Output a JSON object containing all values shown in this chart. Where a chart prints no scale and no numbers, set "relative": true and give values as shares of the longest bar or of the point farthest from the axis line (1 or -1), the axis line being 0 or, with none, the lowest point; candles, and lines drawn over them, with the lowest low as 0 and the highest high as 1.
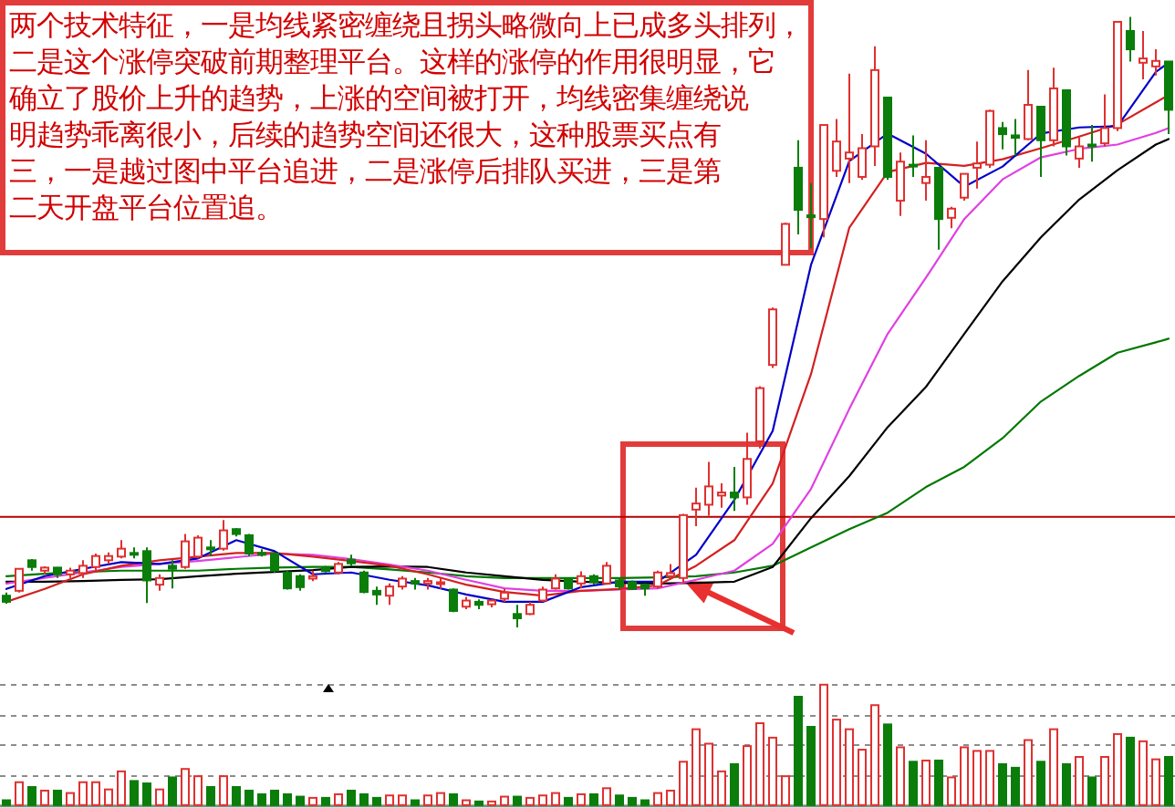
{
  "chart_data": [
    {
      "type": "candlestick",
      "relative": true,
      "categories": [
        null,
        null,
        null,
        null,
        null,
        null,
        null,
        null,
        null,
        null,
        null,
        null,
        null,
        null,
        null,
        null,
        null,
        null,
        null,
        null,
        null,
        null,
        null,
        null,
        null,
        null,
        null,
        null,
        null,
        null,
        null,
        null,
        null,
        null,
        null,
        null,
        null,
        null,
        null,
        null,
        null,
        null,
        null,
        null,
        null,
        null,
        null,
        null,
        null,
        null,
        null,
        null,
        null,
        null,
        null,
        null,
        null,
        null,
        null,
        null,
        null,
        null,
        null,
        null,
        null,
        null,
        null,
        null,
        null,
        null,
        null,
        null,
        null,
        null,
        null,
        null,
        null,
        null,
        null,
        null,
        null,
        null,
        null,
        null,
        null,
        null,
        null,
        null,
        null,
        null,
        null,
        null
      ],
      "ohlc": [
        [
          0.052,
          0.057,
          0.039,
          0.042
        ],
        [
          0.06,
          0.097,
          0.057,
          0.096
        ],
        [
          0.11,
          0.112,
          0.093,
          0.099
        ],
        [
          0.093,
          0.1,
          0.087,
          0.098
        ],
        [
          0.098,
          0.099,
          0.081,
          0.087
        ],
        [
          0.087,
          0.098,
          0.081,
          0.093
        ],
        [
          0.089,
          0.11,
          0.081,
          0.101
        ],
        [
          0.099,
          0.121,
          0.093,
          0.117
        ],
        [
          0.11,
          0.123,
          0.104,
          0.117
        ],
        [
          0.116,
          0.143,
          0.113,
          0.129
        ],
        [
          0.122,
          0.131,
          0.113,
          0.121
        ],
        [
          0.125,
          0.131,
          0.04,
          0.077
        ],
        [
          0.07,
          0.087,
          0.06,
          0.081
        ],
        [
          0.101,
          0.11,
          0.064,
          0.096
        ],
        [
          0.099,
          0.153,
          0.096,
          0.141
        ],
        [
          0.116,
          0.151,
          0.113,
          0.147
        ],
        [
          0.131,
          0.143,
          0.117,
          0.128
        ],
        [
          0.129,
          0.176,
          0.126,
          0.159
        ],
        [
          0.161,
          0.163,
          0.149,
          0.153
        ],
        [
          0.151,
          0.153,
          0.117,
          0.121
        ],
        [
          0.122,
          0.128,
          0.116,
          0.119
        ],
        [
          0.121,
          0.123,
          0.09,
          0.093
        ],
        [
          0.09,
          0.093,
          0.062,
          0.064
        ],
        [
          0.084,
          0.087,
          0.06,
          0.066
        ],
        [
          0.08,
          0.093,
          0.076,
          0.084
        ],
        [
          0.098,
          0.101,
          0.09,
          0.092
        ],
        [
          0.09,
          0.107,
          0.087,
          0.104
        ],
        [
          0.111,
          0.119,
          0.101,
          0.105
        ],
        [
          0.09,
          0.093,
          0.056,
          0.058
        ],
        [
          0.06,
          0.067,
          0.037,
          0.054
        ],
        [
          0.052,
          0.072,
          0.037,
          0.067
        ],
        [
          0.067,
          0.084,
          0.062,
          0.08
        ],
        [
          0.076,
          0.081,
          0.062,
          0.072
        ],
        [
          0.072,
          0.081,
          0.062,
          0.076
        ],
        [
          0.071,
          0.081,
          0.063,
          0.074
        ],
        [
          0.062,
          0.064,
          0.025,
          0.027
        ],
        [
          0.034,
          0.05,
          0.03,
          0.044
        ],
        [
          0.042,
          0.046,
          0.03,
          0.037
        ],
        [
          0.038,
          0.046,
          0.033,
          0.044
        ],
        [
          0.047,
          0.064,
          0.042,
          0.057
        ],
        [
          0.022,
          0.037,
          0,
          0.015
        ],
        [
          0.022,
          0.042,
          0.02,
          0.037
        ],
        [
          0.044,
          0.067,
          0.042,
          0.062
        ],
        [
          0.064,
          0.087,
          0.062,
          0.08
        ],
        [
          0.079,
          0.081,
          0.062,
          0.064
        ],
        [
          0.072,
          0.092,
          0.064,
          0.084
        ],
        [
          0.084,
          0.087,
          0.07,
          0.074
        ],
        [
          0.072,
          0.107,
          0.07,
          0.101
        ],
        [
          0.077,
          0.081,
          0.062,
          0.067
        ],
        [
          0.074,
          0.077,
          0.062,
          0.063
        ],
        [
          0.07,
          0.072,
          0.052,
          0.064
        ],
        [
          0.067,
          0.093,
          0.064,
          0.09
        ],
        [
          0.084,
          0.104,
          0.081,
          0.089
        ],
        [
          0.081,
          0.186,
          0.072,
          0.184
        ],
        [
          0.193,
          0.229,
          0.166,
          0.203
        ],
        [
          0.201,
          0.271,
          0.183,
          0.231
        ],
        [
          0.216,
          0.236,
          0.196,
          0.221
        ],
        [
          0.221,
          0.263,
          0.191,
          0.213
        ],
        [
          0.213,
          0.319,
          0.201,
          0.276
        ],
        [
          0.305,
          0.395,
          0.293,
          0.392
        ],
        [
          0.43,
          0.524,
          0.425,
          0.521
        ],
        [
          0.594,
          0.663,
          0.594,
          0.661
        ],
        [
          0.753,
          0.798,
          0.644,
          0.684
        ],
        [
          0.675,
          0.728,
          0.621,
          0.673
        ],
        [
          0.669,
          0.824,
          0.639,
          0.823
        ],
        [
          0.748,
          0.833,
          0.738,
          0.796
        ],
        [
          0.768,
          0.907,
          0.728,
          0.778
        ],
        [
          0.738,
          0.808,
          0.733,
          0.785
        ],
        [
          0.788,
          0.952,
          0.756,
          0.913
        ],
        [
          0.868,
          0.868,
          0.733,
          0.738
        ],
        [
          0.699,
          0.778,
          0.674,
          0.763
        ],
        [
          0.758,
          0.806,
          0.738,
          0.755
        ],
        [
          0.728,
          0.798,
          0.699,
          0.738
        ],
        [
          0.753,
          0.753,
          0.619,
          0.669
        ],
        [
          0.671,
          0.689,
          0.654,
          0.686
        ],
        [
          0.704,
          0.743,
          0.699,
          0.743
        ],
        [
          0.753,
          0.796,
          0.719,
          0.76
        ],
        [
          0.758,
          0.848,
          0.753,
          0.846
        ],
        [
          0.818,
          0.828,
          0.783,
          0.808
        ],
        [
          0.806,
          0.833,
          0.773,
          0.802
        ],
        [
          0.8,
          0.913,
          0.798,
          0.856
        ],
        [
          0.853,
          0.853,
          0.738,
          0.798
        ],
        [
          0.798,
          0.917,
          0.788,
          0.883
        ],
        [
          0.88,
          0.88,
          0.773,
          0.788
        ],
        [
          0.768,
          0.803,
          0.753,
          0.788
        ],
        [
          0.791,
          0.823,
          0.763,
          0.788
        ],
        [
          0.793,
          0.873,
          0.788,
          0.818
        ],
        [
          0.818,
          0.992,
          0.813,
          0.992
        ],
        [
          0.977,
          1,
          0.927,
          0.947
        ],
        [
          0.925,
          0.977,
          0.898,
          0.932
        ],
        [
          0.919,
          0.947,
          0.904,
          0.928
        ],
        [
          0.927,
          0.927,
          0.808,
          0.848
        ]
      ],
      "colors": [
        "#0a7d0a",
        "#e03030",
        "#0a7d0a",
        "#e03030",
        "#0a7d0a",
        "#e03030",
        "#e03030",
        "#e03030",
        "#e03030",
        "#e03030",
        "#0a7d0a",
        "#0a7d0a",
        "#e03030",
        "#0a7d0a",
        "#e03030",
        "#e03030",
        "#0a7d0a",
        "#e03030",
        "#0a7d0a",
        "#0a7d0a",
        "#0a7d0a",
        "#0a7d0a",
        "#0a7d0a",
        "#0a7d0a",
        "#e03030",
        "#0a7d0a",
        "#e03030",
        "#0a7d0a",
        "#0a7d0a",
        "#0a7d0a",
        "#e03030",
        "#e03030",
        "#0a7d0a",
        "#e03030",
        "#e03030",
        "#0a7d0a",
        "#e03030",
        "#0a7d0a",
        "#e03030",
        "#e03030",
        "#0a7d0a",
        "#e03030",
        "#e03030",
        "#e03030",
        "#0a7d0a",
        "#e03030",
        "#0a7d0a",
        "#e03030",
        "#0a7d0a",
        "#0a7d0a",
        "#0a7d0a",
        "#e03030",
        "#e03030",
        "#e03030",
        "#e03030",
        "#e03030",
        "#e03030",
        "#0a7d0a",
        "#e03030",
        "#e03030",
        "#e03030",
        "#e03030",
        "#0a7d0a",
        "#0a7d0a",
        "#e03030",
        "#e03030",
        "#e03030",
        "#e03030",
        "#e03030",
        "#0a7d0a",
        "#e03030",
        "#0a7d0a",
        "#e03030",
        "#0a7d0a",
        "#e03030",
        "#e03030",
        "#e03030",
        "#e03030",
        "#0a7d0a",
        "#0a7d0a",
        "#e03030",
        "#0a7d0a",
        "#e03030",
        "#0a7d0a",
        "#e03030",
        "#0a7d0a",
        "#e03030",
        "#e03030",
        "#0a7d0a",
        "#e03030",
        "#e03030",
        "#0a7d0a"
      ],
      "series": [
        {
          "type": "line",
          "color": "#0000c8",
          "values": [
            0.063,
            null,
            null,
            0.084,
            null,
            null,
            0.096,
            null,
            null,
            0.107,
            null,
            null,
            0.104,
            null,
            null,
            0.113,
            null,
            null,
            0.143,
            null,
            null,
            0.125,
            null,
            null,
            0.087,
            null,
            null,
            0.09,
            null,
            null,
            0.078,
            null,
            null,
            0.069,
            null,
            null,
            0.054,
            null,
            null,
            0.042,
            null,
            null,
            0.042,
            null,
            null,
            0.066,
            null,
            null,
            0.075,
            null,
            null,
            0.075,
            null,
            null,
            0.119,
            null,
            null,
            0.209,
            null,
            null,
            0.322,
            null,
            null,
            0.594,
            null,
            null,
            0.764,
            null,
            null,
            0.809,
            null,
            null,
            0.776,
            null,
            null,
            0.722,
            null,
            null,
            0.755,
            null,
            null,
            0.809,
            null,
            null,
            0.819,
            null,
            null,
            0.821,
            null,
            null,
            0.91,
            0.925
          ]
        },
        {
          "type": "line",
          "color": "#d42020",
          "values": [
            0.042,
            null,
            null,
            0.063,
            null,
            null,
            0.087,
            null,
            null,
            0.101,
            null,
            null,
            0.11,
            null,
            null,
            0.116,
            null,
            null,
            0.122,
            null,
            null,
            0.122,
            null,
            null,
            0.116,
            null,
            null,
            0.109,
            null,
            null,
            0.101,
            null,
            null,
            0.087,
            null,
            null,
            0.07,
            null,
            null,
            0.058,
            null,
            null,
            0.052,
            null,
            null,
            0.06,
            null,
            null,
            0.063,
            null,
            null,
            0.069,
            null,
            null,
            0.101,
            null,
            null,
            0.143,
            null,
            null,
            0.236,
            null,
            null,
            0.415,
            null,
            null,
            0.655,
            null,
            null,
            0.746,
            null,
            null,
            0.761,
            null,
            null,
            0.756,
            null,
            null,
            0.767,
            null,
            null,
            0.785,
            null,
            null,
            0.804,
            null,
            null,
            0.824,
            null,
            null,
            0.86,
            0.872
          ]
        },
        {
          "type": "line",
          "color": "#e040e0",
          "values": [
            0.072,
            null,
            null,
            0.081,
            null,
            null,
            0.09,
            null,
            null,
            0.099,
            null,
            null,
            0.104,
            null,
            null,
            0.109,
            null,
            null,
            0.115,
            null,
            null,
            0.121,
            null,
            null,
            0.119,
            null,
            null,
            0.112,
            null,
            null,
            0.103,
            null,
            null,
            0.093,
            null,
            null,
            0.078,
            null,
            null,
            0.064,
            null,
            null,
            0.06,
            null,
            null,
            0.06,
            null,
            null,
            0.062,
            null,
            null,
            0.064,
            null,
            null,
            0.078,
            null,
            null,
            0.093,
            null,
            null,
            0.137,
            null,
            null,
            0.227,
            null,
            null,
            0.358,
            null,
            null,
            0.481,
            null,
            null,
            0.573,
            null,
            null,
            0.669,
            null,
            null,
            0.734,
            null,
            null,
            0.77,
            null,
            null,
            0.784,
            null,
            null,
            0.791,
            null,
            null,
            0.81,
            0.818
          ]
        },
        {
          "type": "line",
          "color": "#000000",
          "values": [
            0.075,
            null,
            null,
            0.075,
            null,
            null,
            0.076,
            null,
            null,
            0.078,
            null,
            null,
            0.079,
            null,
            null,
            0.084,
            null,
            null,
            0.088,
            null,
            null,
            0.091,
            null,
            null,
            0.094,
            null,
            null,
            0.099,
            null,
            null,
            0.1,
            null,
            null,
            0.099,
            null,
            null,
            0.09,
            null,
            null,
            0.084,
            null,
            null,
            0.078,
            null,
            null,
            0.075,
            null,
            null,
            0.073,
            null,
            null,
            0.072,
            null,
            null,
            0.073,
            null,
            null,
            0.075,
            null,
            null,
            0.099,
            null,
            null,
            0.179,
            null,
            null,
            0.248,
            null,
            null,
            0.328,
            null,
            null,
            0.394,
            null,
            null,
            0.481,
            null,
            null,
            0.567,
            null,
            null,
            0.639,
            null,
            null,
            0.701,
            null,
            null,
            0.749,
            null,
            null,
            0.791,
            0.8
          ]
        },
        {
          "type": "line",
          "color": "#007800",
          "values": [
            0.084,
            null,
            null,
            0.088,
            null,
            null,
            0.091,
            null,
            null,
            0.093,
            null,
            null,
            0.093,
            null,
            null,
            0.093,
            null,
            null,
            0.096,
            null,
            null,
            0.098,
            null,
            null,
            0.099,
            null,
            null,
            0.099,
            null,
            null,
            0.095,
            null,
            null,
            0.09,
            null,
            null,
            0.084,
            null,
            null,
            0.081,
            null,
            null,
            0.081,
            null,
            null,
            0.081,
            null,
            null,
            0.081,
            null,
            null,
            0.082,
            null,
            null,
            0.084,
            null,
            null,
            0.09,
            null,
            null,
            0.101,
            null,
            null,
            0.131,
            null,
            null,
            0.161,
            null,
            null,
            0.188,
            null,
            null,
            0.23,
            null,
            null,
            0.263,
            null,
            null,
            0.31,
            null,
            null,
            0.37,
            null,
            null,
            0.412,
            null,
            null,
            0.45,
            null,
            null,
            0.467,
            0.473
          ]
        }
      ],
      "ref_lines": [
        {
          "axis": "y",
          "value": 0.181,
          "color": "#b40000"
        }
      ],
      "annotations": [
        "两个技术特征，一是均线紧密缠绕且拐头略微向上已成多头排列，",
        "二是这个涨停突破前期整理平台。这样的涨停的作用很明显，它",
        "确立了股价上升的趋势，上涨的空间被打开，均线密集缠绕说",
        "明趋势乖离很小，后续的趋势空间还很大，这种股票买点有",
        "三，一是越过图中平台追进，二是涨停后排队买进，三是第",
        "二天开盘平台位置追。"
      ]
    },
    {
      "type": "bar",
      "relative": true,
      "grid": true,
      "categories": [
        null,
        null,
        null,
        null,
        null,
        null,
        null,
        null,
        null,
        null,
        null,
        null,
        null,
        null,
        null,
        null,
        null,
        null,
        null,
        null,
        null,
        null,
        null,
        null,
        null,
        null,
        null,
        null,
        null,
        null,
        null,
        null,
        null,
        null,
        null,
        null,
        null,
        null,
        null,
        null,
        null,
        null,
        null,
        null,
        null,
        null,
        null,
        null,
        null,
        null,
        null,
        null,
        null,
        null,
        null,
        null,
        null,
        null,
        null,
        null,
        null,
        null,
        null,
        null,
        null,
        null,
        null,
        null,
        null,
        null,
        null,
        null,
        null,
        null,
        null,
        null,
        null,
        null,
        null,
        null,
        null,
        null,
        null,
        null,
        null,
        null,
        null,
        null,
        null,
        null,
        null,
        null
      ],
      "values": [
        0.04,
        0.19,
        0.15,
        0.12,
        0.12,
        0.1,
        0.19,
        0.19,
        0.13,
        0.28,
        0.2,
        0.18,
        0.13,
        0.23,
        0.3,
        0.24,
        0.15,
        0.24,
        0.15,
        0.12,
        0.09,
        0.12,
        0.09,
        0.07,
        0.06,
        0.06,
        0.09,
        0.12,
        0.09,
        0.06,
        0.08,
        0.08,
        0.04,
        0.08,
        0.1,
        0.09,
        0.04,
        0.03,
        0.03,
        0.07,
        0.07,
        0.06,
        0.08,
        0.1,
        0.06,
        0.09,
        0.09,
        0.14,
        0.08,
        0.06,
        0.04,
        0.1,
        0.12,
        0.36,
        0.63,
        0.51,
        0.28,
        0.34,
        0.49,
        0.68,
        0.56,
        0.24,
        0.9,
        0.65,
        1,
        0.71,
        0.63,
        0.46,
        0.83,
        0.67,
        0.48,
        0.36,
        0.37,
        0.37,
        0.23,
        0.48,
        0.45,
        0.45,
        0.34,
        0.31,
        0.54,
        0.36,
        0.63,
        0.34,
        0.4,
        0.23,
        0.4,
        0.59,
        0.56,
        0.53,
        0.38,
        0.4
      ],
      "colors": [
        "#0a7d0a",
        "#e03030",
        "#0a7d0a",
        "#e03030",
        "#0a7d0a",
        "#e03030",
        "#e03030",
        "#e03030",
        "#e03030",
        "#e03030",
        "#0a7d0a",
        "#0a7d0a",
        "#e03030",
        "#0a7d0a",
        "#e03030",
        "#e03030",
        "#0a7d0a",
        "#e03030",
        "#0a7d0a",
        "#0a7d0a",
        "#0a7d0a",
        "#0a7d0a",
        "#0a7d0a",
        "#0a7d0a",
        "#e03030",
        "#0a7d0a",
        "#e03030",
        "#0a7d0a",
        "#0a7d0a",
        "#0a7d0a",
        "#e03030",
        "#e03030",
        "#0a7d0a",
        "#e03030",
        "#e03030",
        "#0a7d0a",
        "#e03030",
        "#0a7d0a",
        "#e03030",
        "#e03030",
        "#0a7d0a",
        "#e03030",
        "#e03030",
        "#e03030",
        "#0a7d0a",
        "#e03030",
        "#0a7d0a",
        "#e03030",
        "#0a7d0a",
        "#0a7d0a",
        "#0a7d0a",
        "#e03030",
        "#e03030",
        "#e03030",
        "#e03030",
        "#e03030",
        "#e03030",
        "#0a7d0a",
        "#e03030",
        "#e03030",
        "#e03030",
        "#e03030",
        "#0a7d0a",
        "#0a7d0a",
        "#e03030",
        "#e03030",
        "#e03030",
        "#e03030",
        "#e03030",
        "#0a7d0a",
        "#e03030",
        "#0a7d0a",
        "#e03030",
        "#0a7d0a",
        "#e03030",
        "#e03030",
        "#e03030",
        "#e03030",
        "#0a7d0a",
        "#0a7d0a",
        "#e03030",
        "#0a7d0a",
        "#e03030",
        "#0a7d0a",
        "#e03030",
        "#0a7d0a",
        "#e03030",
        "#e03030",
        "#0a7d0a",
        "#e03030",
        "#e03030",
        "#0a7d0a"
      ]
    }
  ]
}
